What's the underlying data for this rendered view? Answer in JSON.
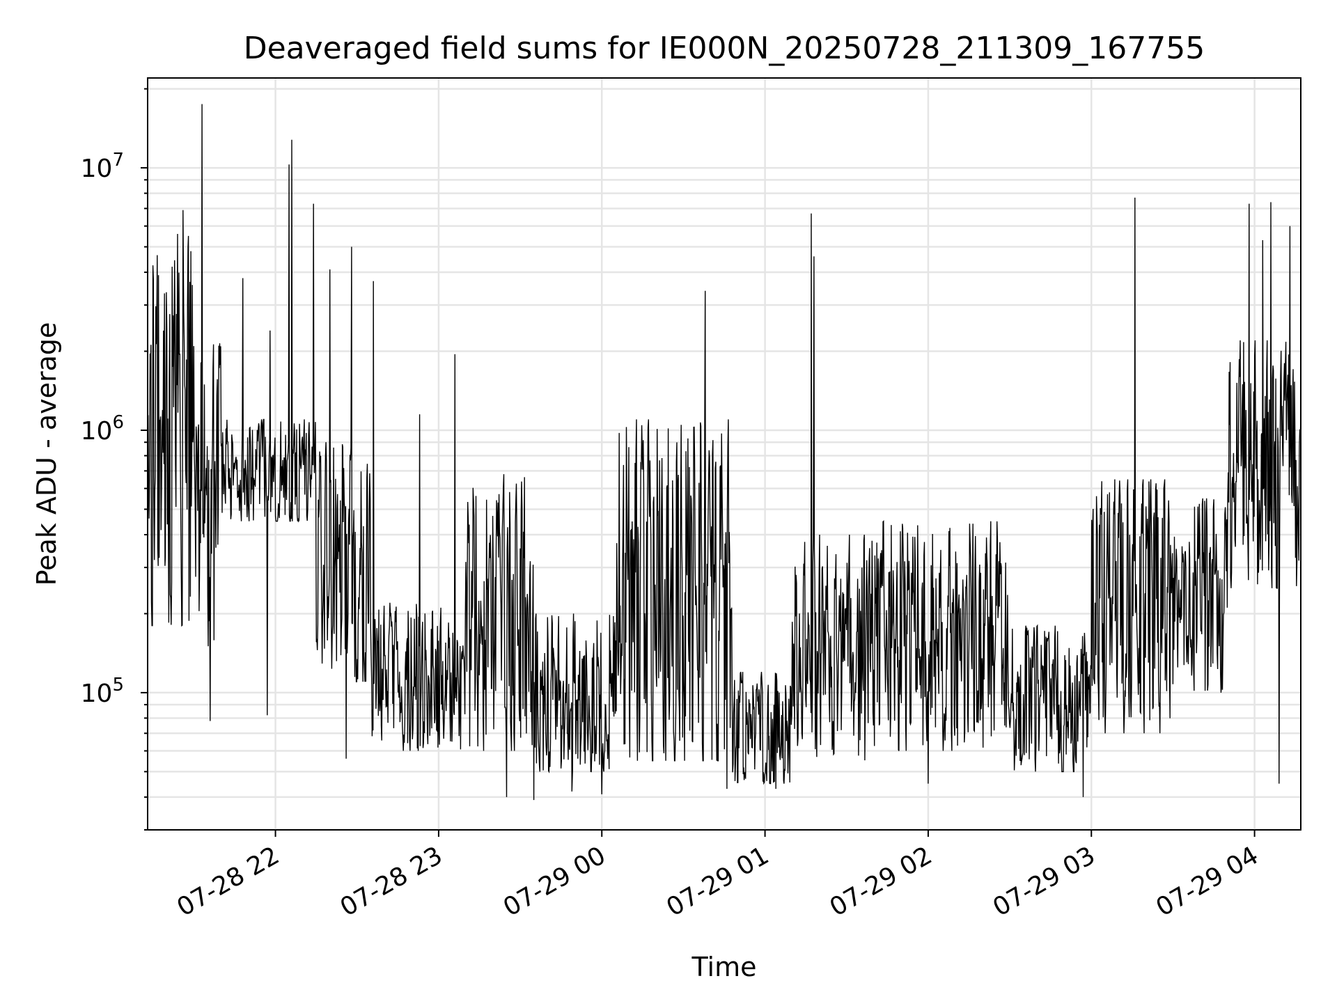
{
  "chart_data": {
    "type": "line",
    "title": "Deaveraged field sums for IE000N_20250728_211309_167755",
    "xlabel": "Time",
    "ylabel": "Peak ADU - average",
    "yscale": "log",
    "ylim": [
      30000,
      22000000
    ],
    "xlim": [
      "07-28 21:13",
      "07-29 04:17"
    ],
    "grid": true,
    "line_color": "#000000",
    "grid_color": "#e5e5e5",
    "x_ticks": [
      {
        "label": "07-28 22",
        "time": "07-28 22:00"
      },
      {
        "label": "07-28 23",
        "time": "07-28 23:00"
      },
      {
        "label": "07-29 00",
        "time": "07-29 00:00"
      },
      {
        "label": "07-29 01",
        "time": "07-29 01:00"
      },
      {
        "label": "07-29 02",
        "time": "07-29 02:00"
      },
      {
        "label": "07-29 03",
        "time": "07-29 03:00"
      },
      {
        "label": "07-29 04",
        "time": "07-29 04:00"
      }
    ],
    "y_ticks": [
      {
        "base": "10",
        "exp": "5",
        "value": 100000
      },
      {
        "base": "10",
        "exp": "6",
        "value": 1000000
      },
      {
        "base": "10",
        "exp": "7",
        "value": 10000000
      }
    ],
    "segments": [
      {
        "start": "07-28 21:13",
        "end": "07-28 21:30",
        "low": 180000,
        "high": 5000000
      },
      {
        "start": "07-28 21:30",
        "end": "07-28 21:40",
        "low": 150000,
        "high": 2500000
      },
      {
        "start": "07-28 21:40",
        "end": "07-28 22:15",
        "low": 450000,
        "high": 1100000
      },
      {
        "start": "07-28 22:15",
        "end": "07-28 22:35",
        "low": 110000,
        "high": 900000
      },
      {
        "start": "07-28 22:35",
        "end": "07-28 23:10",
        "low": 60000,
        "high": 220000
      },
      {
        "start": "07-28 23:10",
        "end": "07-28 23:35",
        "low": 60000,
        "high": 700000
      },
      {
        "start": "07-28 23:35",
        "end": "07-29 00:05",
        "low": 50000,
        "high": 200000
      },
      {
        "start": "07-29 00:05",
        "end": "07-29 00:48",
        "low": 55000,
        "high": 1100000
      },
      {
        "start": "07-29 00:48",
        "end": "07-29 01:10",
        "low": 45000,
        "high": 120000
      },
      {
        "start": "07-29 01:10",
        "end": "07-29 01:40",
        "low": 55000,
        "high": 400000
      },
      {
        "start": "07-29 01:40",
        "end": "07-29 02:30",
        "low": 60000,
        "high": 450000
      },
      {
        "start": "07-29 02:30",
        "end": "07-29 03:00",
        "low": 50000,
        "high": 180000
      },
      {
        "start": "07-29 03:00",
        "end": "07-29 03:30",
        "low": 70000,
        "high": 650000
      },
      {
        "start": "07-29 03:30",
        "end": "07-29 03:50",
        "low": 100000,
        "high": 550000
      },
      {
        "start": "07-29 03:50",
        "end": "07-29 04:17",
        "low": 250000,
        "high": 2200000
      }
    ],
    "spikes": [
      {
        "time": "07-28 21:17",
        "value": 3900000
      },
      {
        "time": "07-28 21:22",
        "value": 4200000
      },
      {
        "time": "07-28 21:24",
        "value": 5600000
      },
      {
        "time": "07-28 21:26",
        "value": 6900000
      },
      {
        "time": "07-28 21:28",
        "value": 5500000
      },
      {
        "time": "07-28 21:33",
        "value": 17500000
      },
      {
        "time": "07-28 21:48",
        "value": 3800000
      },
      {
        "time": "07-28 21:58",
        "value": 2400000
      },
      {
        "time": "07-28 22:05",
        "value": 10300000
      },
      {
        "time": "07-28 22:06",
        "value": 12800000
      },
      {
        "time": "07-28 22:14",
        "value": 7300000
      },
      {
        "time": "07-28 22:20",
        "value": 4100000
      },
      {
        "time": "07-28 22:28",
        "value": 5000000
      },
      {
        "time": "07-28 22:36",
        "value": 3700000
      },
      {
        "time": "07-28 22:53",
        "value": 1150000
      },
      {
        "time": "07-28 23:06",
        "value": 1950000
      },
      {
        "time": "07-29 00:38",
        "value": 3400000
      },
      {
        "time": "07-29 01:17",
        "value": 6700000
      },
      {
        "time": "07-29 01:18",
        "value": 4600000
      },
      {
        "time": "07-29 03:16",
        "value": 7700000
      },
      {
        "time": "07-29 03:58",
        "value": 7300000
      },
      {
        "time": "07-29 04:03",
        "value": 5300000
      },
      {
        "time": "07-29 04:06",
        "value": 7400000
      },
      {
        "time": "07-29 04:13",
        "value": 6000000
      }
    ],
    "dips": [
      {
        "time": "07-28 21:36",
        "value": 78000
      },
      {
        "time": "07-28 21:57",
        "value": 82000
      },
      {
        "time": "07-28 22:26",
        "value": 56000
      },
      {
        "time": "07-28 23:25",
        "value": 40000
      },
      {
        "time": "07-28 23:35",
        "value": 39000
      },
      {
        "time": "07-28 23:49",
        "value": 42000
      },
      {
        "time": "07-29 00:00",
        "value": 41000
      },
      {
        "time": "07-29 00:46",
        "value": 43000
      },
      {
        "time": "07-29 01:04",
        "value": 43000
      },
      {
        "time": "07-29 02:00",
        "value": 45000
      },
      {
        "time": "07-29 02:57",
        "value": 40000
      },
      {
        "time": "07-29 04:09",
        "value": 45000
      }
    ]
  }
}
